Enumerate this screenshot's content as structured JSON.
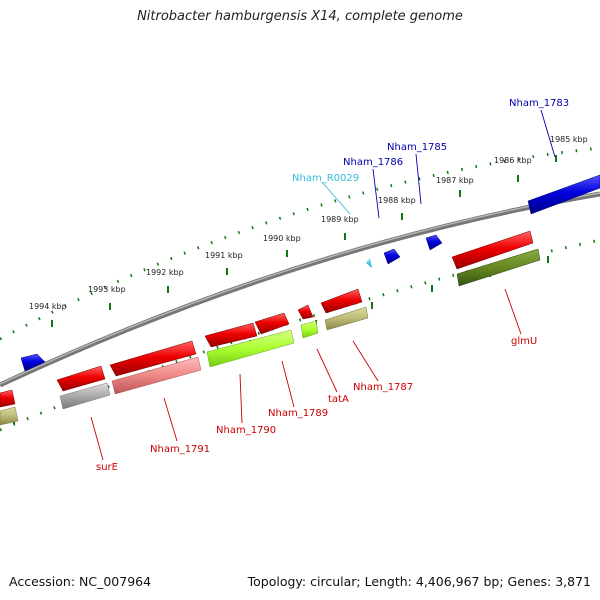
{
  "title": "Nitrobacter hamburgensis X14, complete genome",
  "footer": {
    "accession": "Accession: NC_007964",
    "summary": "Topology: circular; Length: 4,406,967 bp; Genes: 3,871"
  },
  "ticks": [
    "1985 kbp",
    "1986 kbp",
    "1987 kbp",
    "1988 kbp",
    "1989 kbp",
    "1990 kbp",
    "1991 kbp",
    "1992 kbp",
    "1993 kbp",
    "1994 kbp"
  ],
  "labels": {
    "nham_1783": "Nham_1783",
    "nham_1785": "Nham_1785",
    "nham_1786": "Nham_1786",
    "nham_r0029": "Nham_R0029",
    "glmu": "glmU",
    "nham_1787": "Nham_1787",
    "tata": "tatA",
    "nham_1789": "Nham_1789",
    "nham_1790": "Nham_1790",
    "nham_1791": "Nham_1791",
    "sure": "surE"
  },
  "colors": {
    "forward_gene": "#0000dd",
    "rna_gene": "#33bbdd",
    "reverse_gene": "#dd0000",
    "backbone": "#777777",
    "tick": "#117711"
  }
}
